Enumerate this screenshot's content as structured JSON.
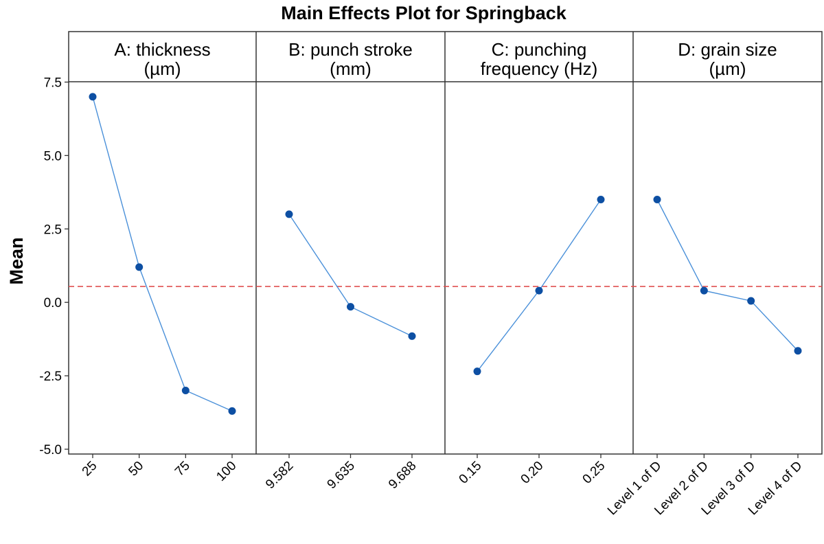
{
  "chart_data": {
    "type": "line",
    "title": "Main Effects Plot for Springback",
    "ylabel": "Mean",
    "xlabel": "",
    "ylim": [
      -5.0,
      7.5
    ],
    "yticks": [
      "7.5",
      "5.0",
      "2.5",
      "0.0",
      "-2.5",
      "-5.0"
    ],
    "ytick_values": [
      7.5,
      5.0,
      2.5,
      0.0,
      -2.5,
      -5.0
    ],
    "reference_line": 0.54,
    "colors": {
      "series": "#4a90d9",
      "marker": "#0d4fa3",
      "reference": "#e05050",
      "frame": "#333333"
    },
    "panels": [
      {
        "title_lines": [
          "A: thickness",
          "(µm)"
        ],
        "categories": [
          "25",
          "50",
          "75",
          "100"
        ],
        "values": [
          7.0,
          1.2,
          -3.0,
          -3.7
        ]
      },
      {
        "title_lines": [
          "B: punch stroke",
          "(mm)"
        ],
        "categories": [
          "9.582",
          "9.635",
          "9.688"
        ],
        "values": [
          3.0,
          -0.15,
          -1.15
        ]
      },
      {
        "title_lines": [
          "C: punching",
          "frequency (Hz)"
        ],
        "categories": [
          "0.15",
          "0.20",
          "0.25"
        ],
        "values": [
          -2.35,
          0.4,
          3.5
        ]
      },
      {
        "title_lines": [
          "D: grain size",
          "(µm)"
        ],
        "categories": [
          "Level 1 of D",
          "Level 2 of D",
          "Level 3 of D",
          "Level 4 of D"
        ],
        "values": [
          3.5,
          0.4,
          0.05,
          -1.65
        ]
      }
    ]
  }
}
